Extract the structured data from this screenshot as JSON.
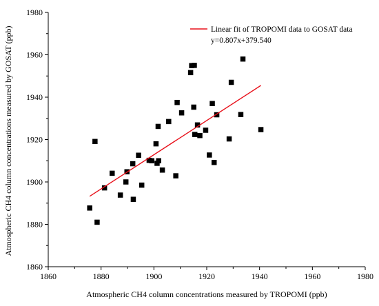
{
  "chart_data": {
    "type": "scatter",
    "xlabel": "Atmospheric CH4 column concentrations measured by TROPOMI (ppb)",
    "ylabel": "Atmospheric CH4 column concentrations measured by GOSAT (ppb)",
    "xlim": [
      1860,
      1980
    ],
    "ylim": [
      1860,
      1980
    ],
    "x_ticks": [
      "1860",
      "1880",
      "1900",
      "1920",
      "1940",
      "1960",
      "1980"
    ],
    "y_ticks": [
      "1860",
      "1880",
      "1900",
      "1920",
      "1940",
      "1960",
      "1980"
    ],
    "grid": false,
    "legend_position": "top-right",
    "legend": {
      "label": "Linear fit of TROPOMI data to GOSAT data",
      "equation": "y=0.807x+379.540"
    },
    "fit": {
      "slope": 0.807,
      "intercept": 379.54,
      "x_range": [
        1875.7,
        1940.5
      ],
      "color": "#e8101a"
    },
    "marker_color": "#000000",
    "points": [
      {
        "x": 1875.7,
        "y": 1887.7
      },
      {
        "x": 1877.7,
        "y": 1919.1
      },
      {
        "x": 1878.5,
        "y": 1881.0
      },
      {
        "x": 1881.3,
        "y": 1897.2
      },
      {
        "x": 1884.2,
        "y": 1904.1
      },
      {
        "x": 1887.3,
        "y": 1893.8
      },
      {
        "x": 1889.4,
        "y": 1900.0
      },
      {
        "x": 1889.8,
        "y": 1904.8
      },
      {
        "x": 1892.0,
        "y": 1908.6
      },
      {
        "x": 1892.2,
        "y": 1891.8
      },
      {
        "x": 1894.2,
        "y": 1912.6
      },
      {
        "x": 1895.4,
        "y": 1898.5
      },
      {
        "x": 1898.2,
        "y": 1910.2
      },
      {
        "x": 1899.2,
        "y": 1910.0
      },
      {
        "x": 1900.8,
        "y": 1918.0
      },
      {
        "x": 1901.2,
        "y": 1908.8
      },
      {
        "x": 1901.6,
        "y": 1926.2
      },
      {
        "x": 1901.8,
        "y": 1910.0
      },
      {
        "x": 1903.2,
        "y": 1905.6
      },
      {
        "x": 1905.6,
        "y": 1928.5
      },
      {
        "x": 1908.3,
        "y": 1902.9
      },
      {
        "x": 1908.8,
        "y": 1937.5
      },
      {
        "x": 1910.5,
        "y": 1932.6
      },
      {
        "x": 1913.9,
        "y": 1951.6
      },
      {
        "x": 1914.3,
        "y": 1954.9
      },
      {
        "x": 1915.3,
        "y": 1955.0
      },
      {
        "x": 1915.1,
        "y": 1935.3
      },
      {
        "x": 1915.5,
        "y": 1922.4
      },
      {
        "x": 1916.5,
        "y": 1926.9
      },
      {
        "x": 1917.4,
        "y": 1921.9
      },
      {
        "x": 1919.6,
        "y": 1924.4
      },
      {
        "x": 1921.0,
        "y": 1912.7
      },
      {
        "x": 1922.1,
        "y": 1937.0
      },
      {
        "x": 1922.8,
        "y": 1909.2
      },
      {
        "x": 1923.8,
        "y": 1931.7
      },
      {
        "x": 1928.5,
        "y": 1920.3
      },
      {
        "x": 1929.3,
        "y": 1947.0
      },
      {
        "x": 1932.9,
        "y": 1931.8
      },
      {
        "x": 1933.7,
        "y": 1958.0
      },
      {
        "x": 1940.5,
        "y": 1924.7
      }
    ]
  }
}
